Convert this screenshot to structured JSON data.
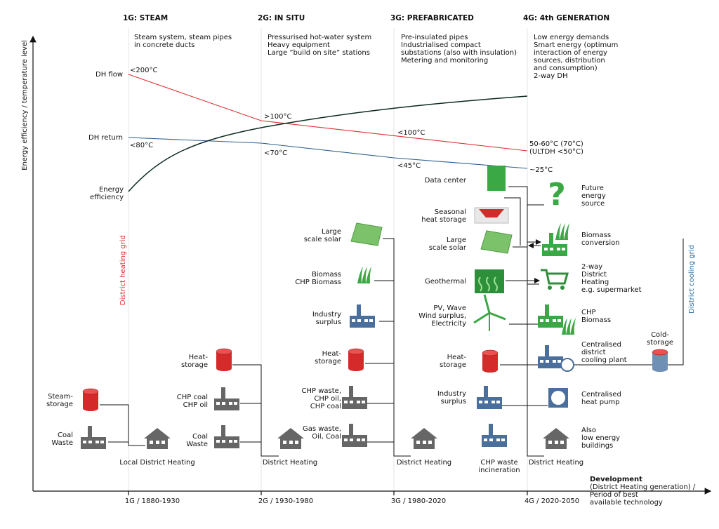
{
  "axes": {
    "y_title": "Energy efficiency / temperature level",
    "x_title": "Development",
    "x_subtitle": [
      "(District Heating generation) /",
      "Period of best",
      "available technology"
    ],
    "x_ticks": [
      "1G / 1880-1930",
      "2G / 1930-1980",
      "3G / 1980-2020",
      "4G / 2020-2050"
    ]
  },
  "generations": [
    {
      "title": "1G: STEAM",
      "description": [
        "Steam system, steam pipes",
        "in concrete ducts"
      ]
    },
    {
      "title": "2G: IN SITU",
      "description": [
        "Pressurised hot-water system",
        "Heavy equipment",
        "Large ”build on site” stations"
      ]
    },
    {
      "title": "3G: PREFABRICATED",
      "description": [
        "Pre-insulated pipes",
        "Industrialised compact",
        "substations (also with insulation)",
        "Metering and monitoring"
      ]
    },
    {
      "title": "4G: 4th GENERATION",
      "description": [
        "Low energy demands",
        "Smart energy (optimum",
        "interaction of energy",
        "sources, distribution",
        "and consumption)",
        "2-way DH"
      ]
    }
  ],
  "temperatures": {
    "flow_label": "DH flow",
    "return_label": "DH return",
    "efficiency_label": [
      "Energy",
      "efficiency"
    ],
    "flow": [
      [
        "<200°C"
      ],
      [
        ">100°C"
      ],
      [
        "<100°C"
      ],
      [
        "50-60°C (70°C)",
        "(ULTDH <50°C)"
      ]
    ],
    "return": [
      "<80°C",
      "<70°C",
      "<45°C",
      "~25°C"
    ]
  },
  "grids": {
    "heating": "District heating grid",
    "cooling": "District cooling grid"
  },
  "networks": [
    "Local District Heating",
    "District Heating",
    "District Heating",
    "District Heating"
  ],
  "components": [
    [
      "Steam-",
      "storage"
    ],
    [
      "Coal",
      "Waste"
    ],
    [
      "Heat-",
      "storage"
    ],
    [
      "CHP coal",
      "CHP oil"
    ],
    [
      "Coal",
      "Waste"
    ],
    [
      "Large",
      "scale solar"
    ],
    [
      "Biomass",
      "CHP Biomass"
    ],
    [
      "Industry",
      "surplus"
    ],
    [
      "Heat-",
      "storage"
    ],
    [
      "CHP waste,",
      "CHP oil,",
      "CHP coal"
    ],
    [
      "Gas waste,",
      "Oil, Coal"
    ],
    [
      "Data center"
    ],
    [
      "Seasonal",
      "heat storage"
    ],
    [
      "Large",
      "scale solar"
    ],
    [
      "Geothermal"
    ],
    [
      "PV, Wave",
      "Wind surplus,",
      "Electricity"
    ],
    [
      "Heat-",
      "storage"
    ],
    [
      "Industry",
      "surplus"
    ],
    [
      "CHP waste",
      "incineration"
    ],
    [
      "Future",
      "energy",
      "source"
    ],
    [
      "Biomass",
      "conversion"
    ],
    [
      "2-way",
      "District",
      "Heating",
      "e.g. supermarket"
    ],
    [
      "CHP",
      "Biomass"
    ],
    [
      "Centralised",
      "district",
      "cooling plant"
    ],
    [
      "Centralised",
      "heat pump"
    ],
    [
      "Also",
      "low energy",
      "buildings"
    ],
    [
      "Cold-",
      "storage"
    ]
  ]
}
